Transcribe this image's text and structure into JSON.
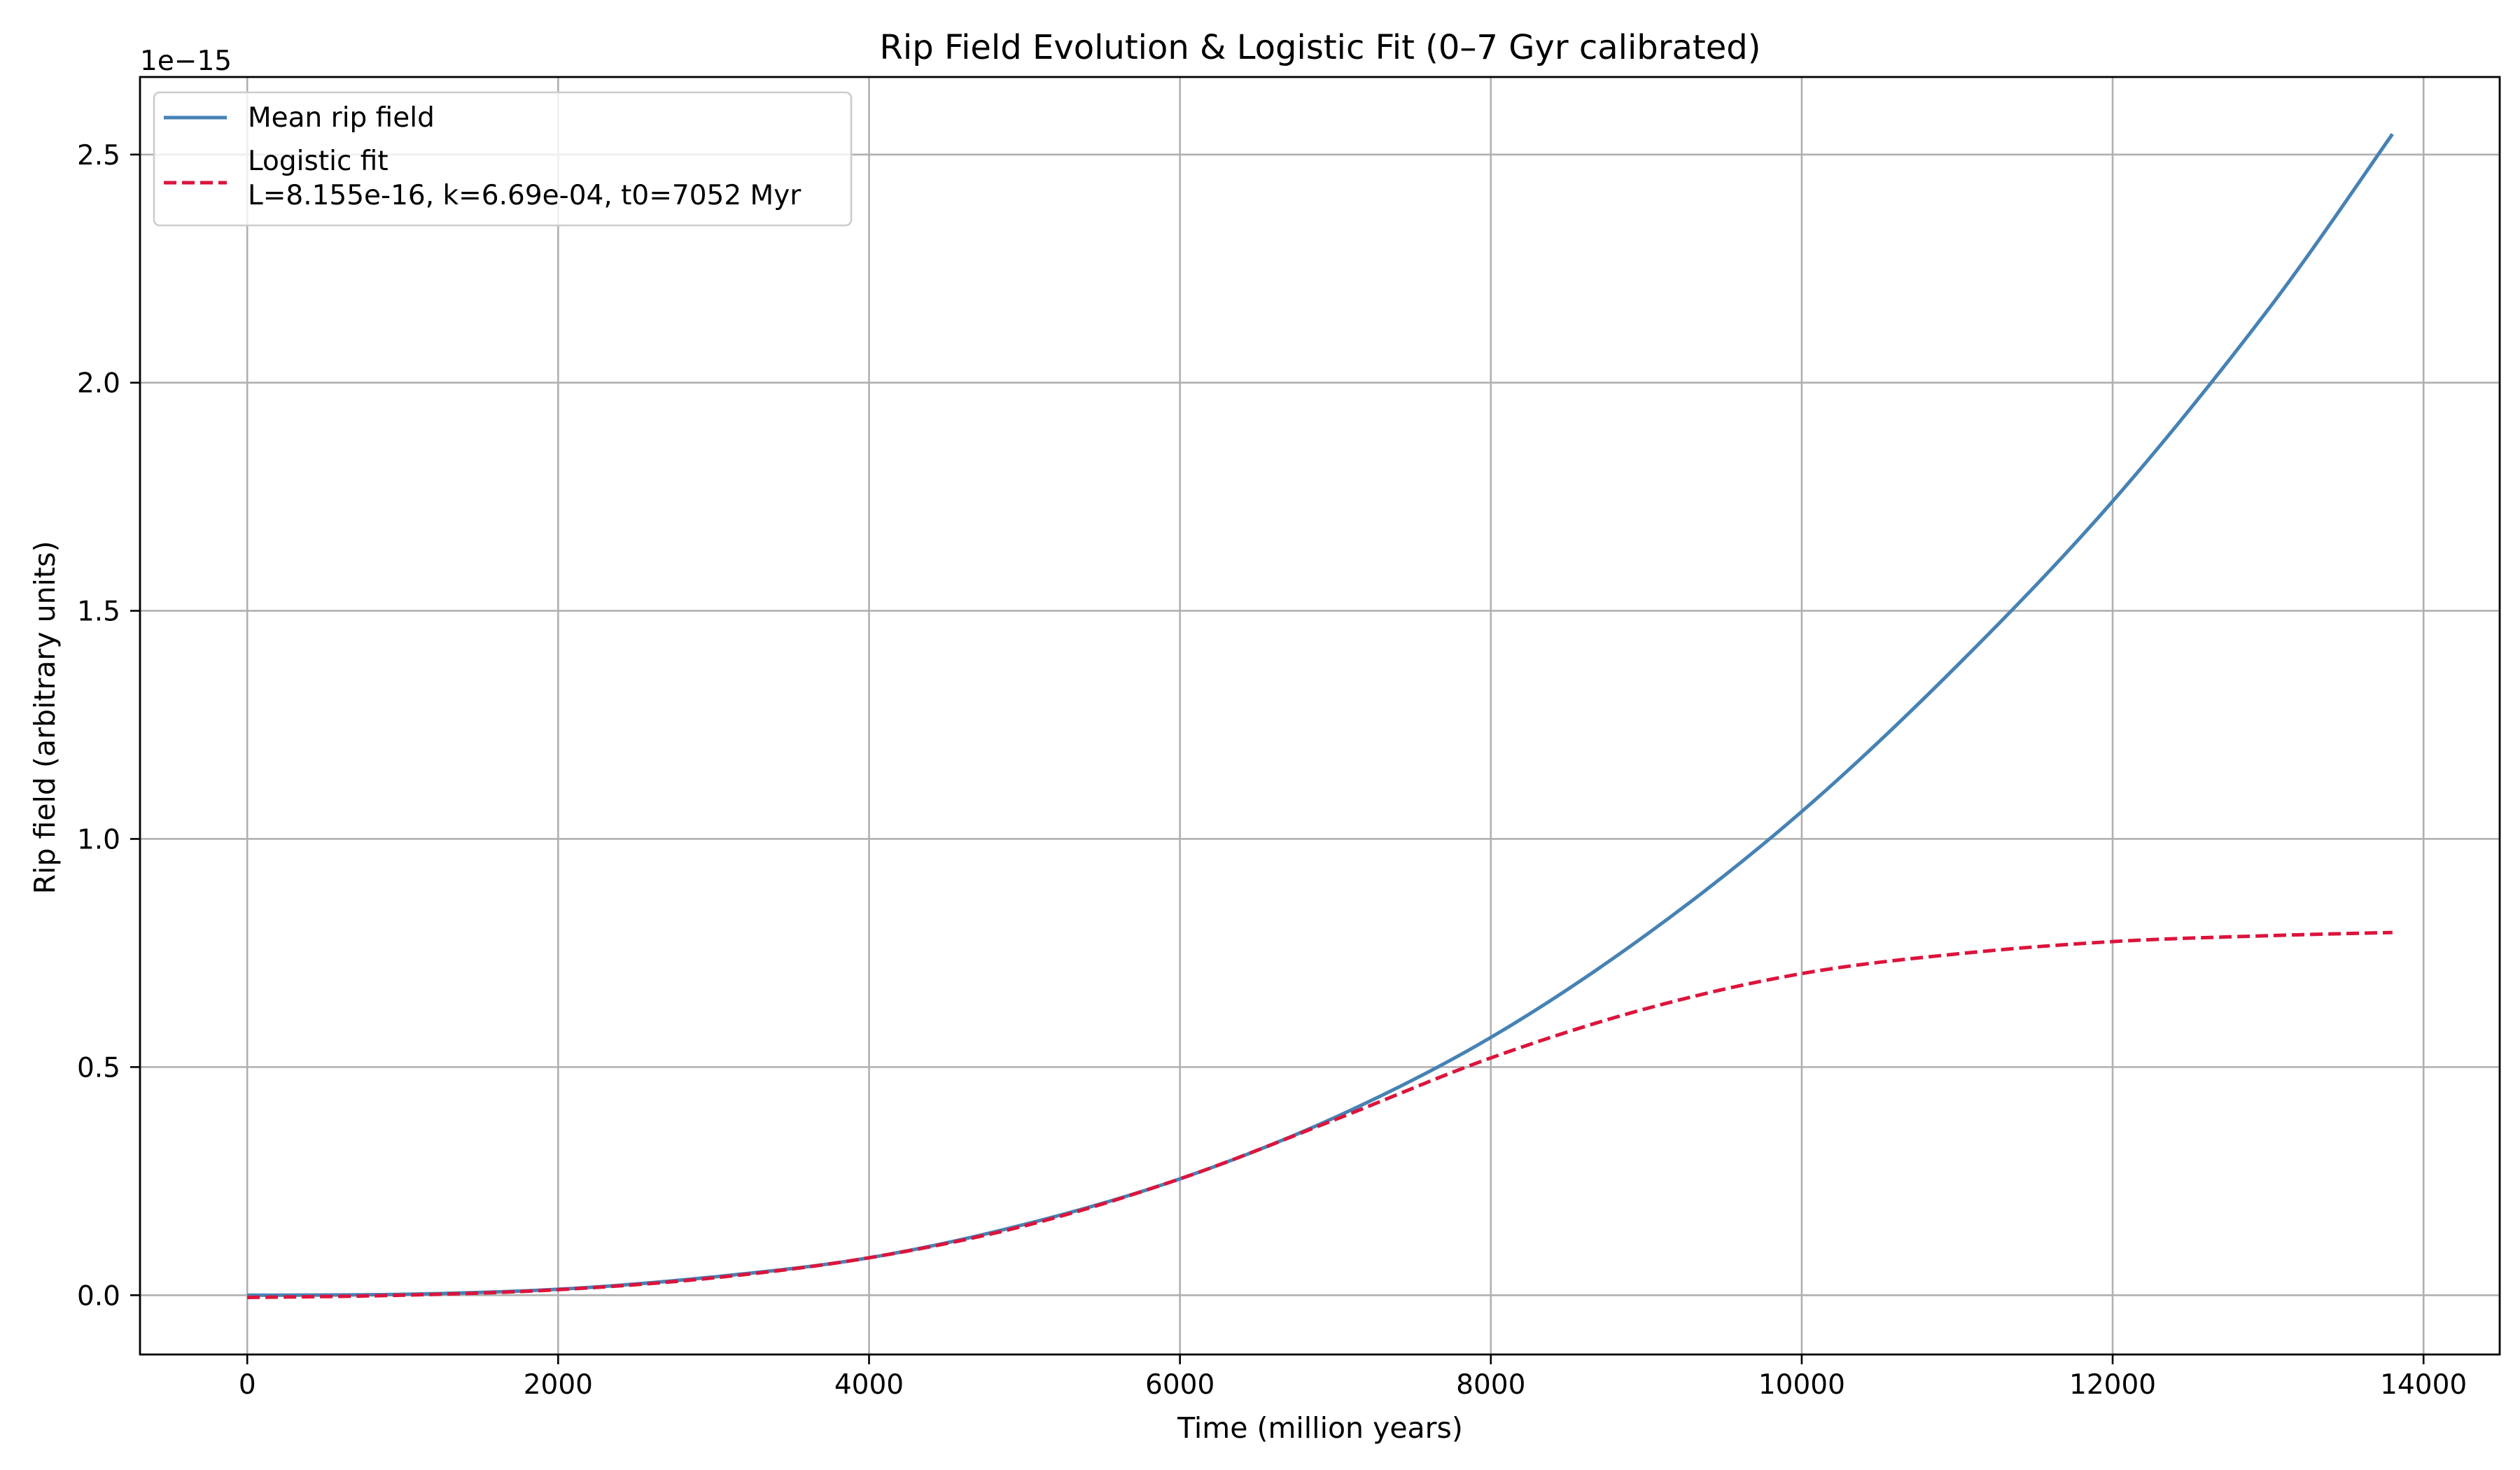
{
  "chart_data": {
    "type": "line",
    "title": "Rip Field Evolution & Logistic Fit (0–7 Gyr calibrated)",
    "xlabel": "Time (million years)",
    "ylabel": "Rip field (arbitrary units)",
    "y_offset_label": "1e−15",
    "xlim": [
      -690,
      14490
    ],
    "ylim": [
      -0.13,
      2.67
    ],
    "y_scale_factor": 1e-15,
    "grid": true,
    "legend_position": "upper left",
    "x_ticks": [
      0,
      2000,
      4000,
      6000,
      8000,
      10000,
      12000,
      14000
    ],
    "x_tick_labels": [
      "0",
      "2000",
      "4000",
      "6000",
      "8000",
      "10000",
      "12000",
      "14000"
    ],
    "y_ticks": [
      0.0,
      0.5,
      1.0,
      1.5,
      2.0,
      2.5
    ],
    "y_tick_labels": [
      "0.0",
      "0.5",
      "1.0",
      "1.5",
      "2.0",
      "2.5"
    ],
    "series": [
      {
        "name": "Mean rip field",
        "color": "#4682b4",
        "style": "solid",
        "x": [
          0,
          1000,
          2000,
          3000,
          4000,
          5000,
          6000,
          7000,
          8000,
          9000,
          10000,
          11000,
          12000,
          13000,
          13800
        ],
        "y": [
          0.0,
          0.002,
          0.013,
          0.04,
          0.082,
          0.155,
          0.255,
          0.39,
          0.565,
          0.79,
          1.06,
          1.38,
          1.74,
          2.16,
          2.545
        ]
      },
      {
        "name": "Logistic fit",
        "name_line2": "L=8.155e-16, k=6.69e-04, t0=7052 Myr",
        "color": "#dc143c",
        "style": "dashed",
        "x": [
          0,
          1000,
          2000,
          3000,
          4000,
          5000,
          6000,
          7000,
          8000,
          9000,
          10000,
          11000,
          12000,
          13000,
          13800
        ],
        "y": [
          -0.005,
          0.0,
          0.012,
          0.038,
          0.082,
          0.152,
          0.255,
          0.385,
          0.52,
          0.628,
          0.705,
          0.748,
          0.775,
          0.788,
          0.795
        ]
      }
    ]
  }
}
